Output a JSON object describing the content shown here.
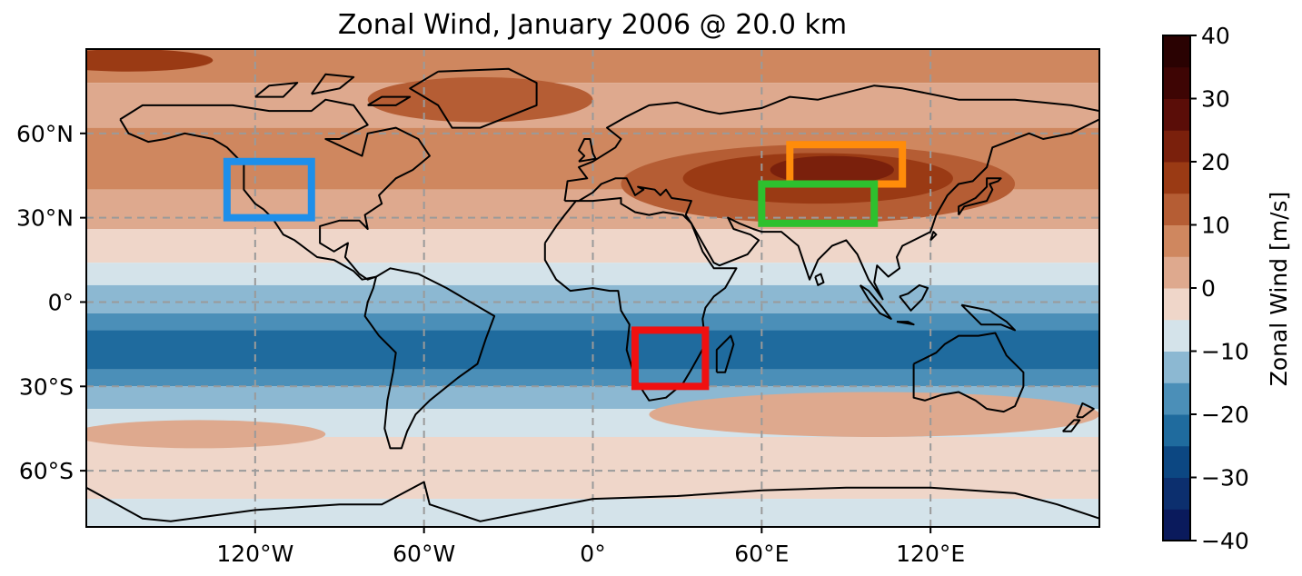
{
  "title": "Zonal Wind, January 2006 @ 20.0 km",
  "lat_ticks": [
    {
      "lat": 60,
      "label": "60°N"
    },
    {
      "lat": 30,
      "label": "30°N"
    },
    {
      "lat": 0,
      "label": "0°"
    },
    {
      "lat": -30,
      "label": "30°S"
    },
    {
      "lat": -60,
      "label": "60°S"
    }
  ],
  "lon_ticks": [
    {
      "lon": -120,
      "label": "120°W"
    },
    {
      "lon": -60,
      "label": "60°W"
    },
    {
      "lon": 0,
      "label": "0°"
    },
    {
      "lon": 60,
      "label": "60°E"
    },
    {
      "lon": 120,
      "label": "120°E"
    }
  ],
  "map_extent": {
    "lon": [
      -180,
      180
    ],
    "lat": [
      -80,
      90
    ]
  },
  "colorbar": {
    "label": "Zonal Wind [m/s]",
    "ticks": [
      "−40",
      "−30",
      "−20",
      "−10",
      "0",
      "10",
      "20",
      "30",
      "40"
    ],
    "tick_values": [
      -40,
      -30,
      -20,
      -10,
      0,
      10,
      20,
      30,
      40
    ],
    "levels": [
      -40,
      -35,
      -30,
      -25,
      -20,
      -15,
      -10,
      -5,
      0,
      5,
      10,
      15,
      20,
      25,
      30,
      35,
      40
    ],
    "colors": [
      "#0a1a5c",
      "#0c2f6e",
      "#0c4782",
      "#1f6b9e",
      "#4b8fb8",
      "#8cb8d2",
      "#d4e3ea",
      "#efd6c9",
      "#dea98e",
      "#cf875f",
      "#b55d34",
      "#9a3a14",
      "#7a200c",
      "#5a0d08",
      "#3e0504",
      "#2a0202"
    ]
  },
  "wind_bands": [
    {
      "lat": [
        78,
        90
      ],
      "level": 9
    },
    {
      "lat": [
        62,
        78
      ],
      "level": 8
    },
    {
      "lat": [
        40,
        62
      ],
      "level": 9
    },
    {
      "lat": [
        26,
        40
      ],
      "level": 8
    },
    {
      "lat": [
        14,
        26
      ],
      "level": 7
    },
    {
      "lat": [
        6,
        14
      ],
      "level": 6
    },
    {
      "lat": [
        -4,
        6
      ],
      "level": 5
    },
    {
      "lat": [
        -10,
        -4
      ],
      "level": 4
    },
    {
      "lat": [
        -24,
        -10
      ],
      "level": 3
    },
    {
      "lat": [
        -30,
        -24
      ],
      "level": 4
    },
    {
      "lat": [
        -38,
        -30
      ],
      "level": 5
    },
    {
      "lat": [
        -48,
        -38
      ],
      "level": 6
    },
    {
      "lat": [
        -70,
        -48
      ],
      "level": 7
    },
    {
      "lat": [
        -80,
        -70
      ],
      "level": 6
    }
  ],
  "jets": [
    {
      "lon": 80,
      "lat": 42,
      "rlon": 70,
      "rlat": 14,
      "level": 10
    },
    {
      "lon": 80,
      "lat": 44,
      "rlon": 48,
      "rlat": 9,
      "level": 11
    },
    {
      "lon": 85,
      "lat": 47,
      "rlon": 22,
      "rlat": 5,
      "level": 12
    },
    {
      "lon": -40,
      "lat": 72,
      "rlon": 40,
      "rlat": 8,
      "level": 10
    },
    {
      "lon": 100,
      "lat": -40,
      "rlon": 80,
      "rlat": 8,
      "level": 8
    },
    {
      "lon": -140,
      "lat": -47,
      "rlon": 45,
      "rlat": 5,
      "level": 8
    },
    {
      "lon": -165,
      "lat": 86,
      "rlon": 30,
      "rlat": 4,
      "level": 11
    }
  ],
  "regions": [
    {
      "name": "blue-box",
      "color": "#1e8fea",
      "lon": [
        -130,
        -100
      ],
      "lat": [
        30,
        50
      ]
    },
    {
      "name": "orange-box",
      "color": "#ff8c0a",
      "lon": [
        70,
        110
      ],
      "lat": [
        42,
        56
      ]
    },
    {
      "name": "green-box",
      "color": "#2ec02e",
      "lon": [
        60,
        100
      ],
      "lat": [
        28,
        42
      ]
    },
    {
      "name": "red-box",
      "color": "#f01010",
      "lon": [
        15,
        40
      ],
      "lat": [
        -30,
        -10
      ]
    }
  ],
  "coastlines": [
    [
      [
        -168,
        65
      ],
      [
        -160,
        70
      ],
      [
        -140,
        70
      ],
      [
        -128,
        70
      ],
      [
        -115,
        68
      ],
      [
        -100,
        68
      ],
      [
        -95,
        72
      ],
      [
        -85,
        70
      ],
      [
        -80,
        63
      ],
      [
        -90,
        58
      ],
      [
        -95,
        58
      ],
      [
        -82,
        52
      ],
      [
        -80,
        60
      ],
      [
        -70,
        62
      ],
      [
        -62,
        58
      ],
      [
        -58,
        52
      ],
      [
        -64,
        47
      ],
      [
        -70,
        44
      ],
      [
        -76,
        38
      ],
      [
        -75,
        35
      ],
      [
        -81,
        31
      ],
      [
        -80,
        26
      ],
      [
        -83,
        29
      ],
      [
        -90,
        29
      ],
      [
        -97,
        27
      ],
      [
        -97,
        21
      ],
      [
        -92,
        18
      ],
      [
        -87,
        21
      ],
      [
        -88,
        16
      ],
      [
        -83,
        10
      ],
      [
        -80,
        8
      ],
      [
        -77,
        9
      ],
      [
        -82,
        8
      ],
      [
        -85,
        11
      ],
      [
        -92,
        15
      ],
      [
        -98,
        16
      ],
      [
        -106,
        22
      ],
      [
        -110,
        24
      ],
      [
        -114,
        30
      ],
      [
        -117,
        33
      ],
      [
        -120,
        35
      ],
      [
        -124,
        40
      ],
      [
        -124,
        46
      ],
      [
        -124,
        49
      ],
      [
        -130,
        55
      ],
      [
        -135,
        58
      ],
      [
        -145,
        60
      ],
      [
        -152,
        58
      ],
      [
        -158,
        57
      ],
      [
        -165,
        60
      ],
      [
        -168,
        65
      ]
    ],
    [
      [
        -55,
        82
      ],
      [
        -30,
        83
      ],
      [
        -20,
        78
      ],
      [
        -20,
        70
      ],
      [
        -40,
        62
      ],
      [
        -50,
        62
      ],
      [
        -55,
        70
      ],
      [
        -65,
        76
      ],
      [
        -55,
        82
      ]
    ],
    [
      [
        -77,
        9
      ],
      [
        -72,
        12
      ],
      [
        -62,
        10
      ],
      [
        -52,
        5
      ],
      [
        -35,
        -5
      ],
      [
        -38,
        -13
      ],
      [
        -41,
        -22
      ],
      [
        -48,
        -27
      ],
      [
        -58,
        -35
      ],
      [
        -63,
        -40
      ],
      [
        -66,
        -46
      ],
      [
        -68,
        -52
      ],
      [
        -72,
        -52
      ],
      [
        -74,
        -45
      ],
      [
        -73,
        -35
      ],
      [
        -71,
        -25
      ],
      [
        -70,
        -18
      ],
      [
        -76,
        -12
      ],
      [
        -81,
        -5
      ],
      [
        -80,
        0
      ],
      [
        -78,
        5
      ],
      [
        -77,
        9
      ]
    ],
    [
      [
        -10,
        36
      ],
      [
        -9,
        43
      ],
      [
        -2,
        44
      ],
      [
        -5,
        48
      ],
      [
        0,
        50
      ],
      [
        8,
        55
      ],
      [
        10,
        58
      ],
      [
        5,
        62
      ],
      [
        12,
        66
      ],
      [
        20,
        70
      ],
      [
        30,
        71
      ],
      [
        40,
        68
      ],
      [
        45,
        67
      ],
      [
        60,
        69
      ],
      [
        70,
        73
      ],
      [
        80,
        72
      ],
      [
        100,
        77
      ],
      [
        110,
        76
      ],
      [
        130,
        72
      ],
      [
        150,
        72
      ],
      [
        170,
        70
      ],
      [
        180,
        68
      ],
      [
        180,
        65
      ],
      [
        170,
        60
      ],
      [
        160,
        58
      ],
      [
        155,
        60
      ],
      [
        142,
        55
      ],
      [
        140,
        48
      ],
      [
        135,
        43
      ],
      [
        130,
        42
      ],
      [
        126,
        38
      ],
      [
        122,
        31
      ],
      [
        120,
        25
      ],
      [
        110,
        20
      ],
      [
        108,
        16
      ],
      [
        109,
        12
      ],
      [
        105,
        9
      ],
      [
        101,
        13
      ],
      [
        100,
        7
      ],
      [
        103,
        1
      ],
      [
        98,
        8
      ],
      [
        94,
        17
      ],
      [
        90,
        22
      ],
      [
        85,
        20
      ],
      [
        80,
        15
      ],
      [
        77,
        8
      ],
      [
        73,
        20
      ],
      [
        67,
        25
      ],
      [
        60,
        25
      ],
      [
        57,
        26
      ],
      [
        52,
        28
      ],
      [
        48,
        30
      ],
      [
        50,
        26
      ],
      [
        56,
        24
      ],
      [
        59,
        22
      ],
      [
        55,
        17
      ],
      [
        45,
        13
      ],
      [
        43,
        14
      ],
      [
        35,
        28
      ],
      [
        33,
        31
      ],
      [
        35,
        36
      ],
      [
        28,
        37
      ],
      [
        26,
        40
      ],
      [
        24,
        38
      ],
      [
        22,
        40
      ],
      [
        16,
        41
      ],
      [
        18,
        40
      ],
      [
        15,
        38
      ],
      [
        12,
        44
      ],
      [
        8,
        44
      ],
      [
        3,
        42
      ],
      [
        0,
        39
      ],
      [
        -5,
        36
      ],
      [
        -10,
        36
      ]
    ],
    [
      [
        -17,
        21
      ],
      [
        -17,
        15
      ],
      [
        -13,
        8
      ],
      [
        -8,
        4
      ],
      [
        0,
        5
      ],
      [
        6,
        4
      ],
      [
        9,
        4
      ],
      [
        10,
        -3
      ],
      [
        13,
        -8
      ],
      [
        12,
        -17
      ],
      [
        15,
        -27
      ],
      [
        18,
        -32
      ],
      [
        20,
        -35
      ],
      [
        26,
        -34
      ],
      [
        32,
        -29
      ],
      [
        35,
        -24
      ],
      [
        40,
        -15
      ],
      [
        39,
        -6
      ],
      [
        40,
        -2
      ],
      [
        43,
        2
      ],
      [
        47,
        5
      ],
      [
        51,
        12
      ],
      [
        43,
        12
      ],
      [
        39,
        18
      ],
      [
        35,
        28
      ],
      [
        32,
        31
      ],
      [
        25,
        32
      ],
      [
        20,
        31
      ],
      [
        15,
        32
      ],
      [
        10,
        35
      ],
      [
        10,
        37
      ],
      [
        0,
        36
      ],
      [
        -6,
        36
      ],
      [
        -10,
        31
      ],
      [
        -13,
        27
      ],
      [
        -17,
        21
      ]
    ],
    [
      [
        44,
        -25
      ],
      [
        47,
        -25
      ],
      [
        50,
        -15
      ],
      [
        49,
        -12
      ],
      [
        44,
        -17
      ],
      [
        44,
        -25
      ]
    ],
    [
      [
        114,
        -22
      ],
      [
        114,
        -34
      ],
      [
        118,
        -35
      ],
      [
        124,
        -33
      ],
      [
        130,
        -32
      ],
      [
        136,
        -35
      ],
      [
        140,
        -38
      ],
      [
        146,
        -39
      ],
      [
        150,
        -37
      ],
      [
        153,
        -30
      ],
      [
        153,
        -25
      ],
      [
        147,
        -19
      ],
      [
        143,
        -11
      ],
      [
        137,
        -12
      ],
      [
        130,
        -12
      ],
      [
        125,
        -15
      ],
      [
        122,
        -18
      ],
      [
        114,
        -22
      ]
    ],
    [
      [
        -5,
        50
      ],
      [
        -3,
        52
      ],
      [
        -5,
        54
      ],
      [
        -3,
        58
      ],
      [
        -1,
        58
      ],
      [
        0,
        53
      ],
      [
        1,
        51
      ],
      [
        -5,
        50
      ]
    ],
    [
      [
        130,
        31
      ],
      [
        132,
        34
      ],
      [
        136,
        35
      ],
      [
        140,
        36
      ],
      [
        142,
        40
      ],
      [
        141,
        42
      ],
      [
        144,
        43
      ],
      [
        145,
        44
      ],
      [
        140,
        44
      ],
      [
        140,
        41
      ],
      [
        136,
        37
      ],
      [
        130,
        34
      ],
      [
        130,
        31
      ]
    ],
    [
      [
        95,
        6
      ],
      [
        98,
        4
      ],
      [
        103,
        -2
      ],
      [
        106,
        -6
      ],
      [
        102,
        -4
      ],
      [
        98,
        1
      ],
      [
        95,
        6
      ]
    ],
    [
      [
        108,
        -7
      ],
      [
        114,
        -8
      ],
      [
        112,
        -7
      ],
      [
        108,
        -7
      ]
    ],
    [
      [
        109,
        2
      ],
      [
        113,
        -3
      ],
      [
        117,
        1
      ],
      [
        119,
        5
      ],
      [
        116,
        6
      ],
      [
        112,
        3
      ],
      [
        109,
        2
      ]
    ],
    [
      [
        131,
        -1
      ],
      [
        141,
        -3
      ],
      [
        147,
        -7
      ],
      [
        150,
        -10
      ],
      [
        145,
        -8
      ],
      [
        138,
        -8
      ],
      [
        131,
        -1
      ]
    ],
    [
      [
        -180,
        -66
      ],
      [
        -160,
        -77
      ],
      [
        -150,
        -78
      ],
      [
        -120,
        -74
      ],
      [
        -90,
        -72
      ],
      [
        -75,
        -72
      ],
      [
        -60,
        -64
      ],
      [
        -58,
        -72
      ],
      [
        -40,
        -78
      ],
      [
        -20,
        -74
      ],
      [
        0,
        -70
      ],
      [
        30,
        -69
      ],
      [
        60,
        -67
      ],
      [
        90,
        -66
      ],
      [
        120,
        -66
      ],
      [
        150,
        -68
      ],
      [
        165,
        -72
      ],
      [
        180,
        -77
      ]
    ],
    [
      [
        -80,
        70
      ],
      [
        -70,
        70
      ],
      [
        -65,
        73
      ],
      [
        -75,
        73
      ],
      [
        -80,
        70
      ]
    ],
    [
      [
        -120,
        73
      ],
      [
        -110,
        73
      ],
      [
        -105,
        78
      ],
      [
        -115,
        77
      ],
      [
        -120,
        73
      ]
    ],
    [
      [
        -100,
        74
      ],
      [
        -90,
        76
      ],
      [
        -85,
        80
      ],
      [
        -95,
        81
      ],
      [
        -100,
        74
      ]
    ],
    [
      [
        172,
        -41
      ],
      [
        174,
        -41
      ],
      [
        178,
        -38
      ],
      [
        174,
        -36
      ],
      [
        172,
        -41
      ]
    ],
    [
      [
        167,
        -46
      ],
      [
        170,
        -46
      ],
      [
        173,
        -42
      ],
      [
        171,
        -42
      ],
      [
        167,
        -46
      ]
    ],
    [
      [
        120,
        22
      ],
      [
        121,
        25
      ],
      [
        122,
        24
      ],
      [
        120,
        22
      ]
    ],
    [
      [
        79,
        9
      ],
      [
        81,
        10
      ],
      [
        82,
        7
      ],
      [
        80,
        6
      ],
      [
        79,
        9
      ]
    ]
  ]
}
